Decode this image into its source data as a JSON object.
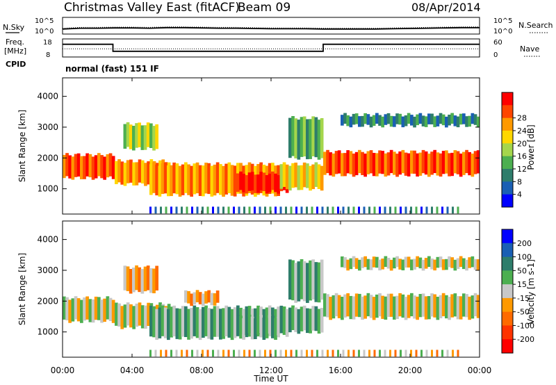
{
  "header": {
    "title": "Christmas Valley East (fitACF)",
    "beam": "Beam 09",
    "date": "08/Apr/2014"
  },
  "mode_label": "normal (fast) 151 IF",
  "noise_panel": {
    "left_label": "N.Sky",
    "right_label": "N.Search",
    "left_ticks": [
      "10^5",
      "10^0"
    ],
    "right_ticks": [
      "10^5",
      "10^0"
    ],
    "level": [
      1.3,
      1.6,
      1.6,
      1.7,
      1.7,
      1.6,
      1.8,
      1.8,
      1.7,
      1.6,
      1.6,
      1.5,
      1.4,
      1.4,
      1.4,
      1.3,
      1.3,
      1.3,
      1.3,
      1.4,
      1.5,
      1.6,
      1.7,
      1.8,
      1.8
    ]
  },
  "freq_panel": {
    "left_label": "Freq.",
    "left_unit": "[MHz]",
    "right_label": "Nave",
    "cpid_label": "CPID",
    "left_ticks": [
      "18",
      "8"
    ],
    "right_ticks": [
      "60",
      "0"
    ],
    "steps": [
      [
        0,
        2.9,
        15.2
      ],
      [
        2.9,
        15.0,
        11.0
      ],
      [
        15.0,
        24,
        15.2
      ]
    ],
    "nave_level": 0.45
  },
  "time_axis": {
    "label": "Time UT",
    "ticks": [
      "00:00",
      "04:00",
      "08:00",
      "12:00",
      "16:00",
      "20:00",
      "00:00"
    ],
    "range_hours": [
      0,
      24
    ]
  },
  "chart_data": [
    {
      "type": "heatmap",
      "name": "power",
      "ylabel": "Slant Range [km]",
      "xrange_hours": [
        0,
        24
      ],
      "ylim_km": [
        180,
        4600
      ],
      "yticks": [
        1000,
        2000,
        3000,
        4000
      ],
      "colorbar": {
        "label": "Power [dB]",
        "ticks": [
          "4",
          "8",
          "12",
          "16",
          "20",
          "24",
          "28"
        ],
        "colors": [
          "#0000ff",
          "#1a5fb4",
          "#2e7d6b",
          "#4caf50",
          "#a5d64c",
          "#ffd700",
          "#ff9900",
          "#ff4500",
          "#ff0000"
        ]
      },
      "echo_bands": [
        {
          "t": [
            0.0,
            3.0
          ],
          "r": [
            1350,
            2100
          ],
          "level": 7
        },
        {
          "t": [
            3.0,
            6.2
          ],
          "r": [
            1150,
            1900
          ],
          "level": 6
        },
        {
          "t": [
            3.5,
            5.5
          ],
          "r": [
            2300,
            3100
          ],
          "level": 4
        },
        {
          "t": [
            5.0,
            12.5
          ],
          "r": [
            800,
            1800
          ],
          "level": 6
        },
        {
          "t": [
            10.0,
            13.0
          ],
          "r": [
            900,
            1500
          ],
          "level": 8
        },
        {
          "t": [
            12.5,
            15.0
          ],
          "r": [
            1000,
            1800
          ],
          "level": 5
        },
        {
          "t": [
            13.0,
            15.0
          ],
          "r": [
            2000,
            3300
          ],
          "level": 3
        },
        {
          "t": [
            15.0,
            24.0
          ],
          "r": [
            1450,
            2200
          ],
          "level": 7
        },
        {
          "t": [
            16.0,
            24.0
          ],
          "r": [
            3050,
            3400
          ],
          "level": 2
        }
      ]
    },
    {
      "type": "heatmap",
      "name": "velocity",
      "ylabel": "Slant Range [km]",
      "xrange_hours": [
        0,
        24
      ],
      "ylim_km": [
        180,
        4600
      ],
      "yticks": [
        1000,
        2000,
        3000,
        4000
      ],
      "colorbar": {
        "label": "Velocity [m s-1]",
        "ticks": [
          "200",
          "100",
          "50",
          "15",
          "-15",
          "-50",
          "-100",
          "-200"
        ],
        "colors": [
          "#0000ff",
          "#1a5fb4",
          "#2e7d6b",
          "#4caf50",
          "#c8c8c8",
          "#ff9900",
          "#ff6a00",
          "#ff3300",
          "#ff0000"
        ]
      },
      "echo_bands": [
        {
          "t": [
            0.0,
            3.0
          ],
          "r": [
            1350,
            2100
          ],
          "level": 4
        },
        {
          "t": [
            3.0,
            6.2
          ],
          "r": [
            1150,
            1900
          ],
          "level": 4
        },
        {
          "t": [
            3.5,
            5.5
          ],
          "r": [
            2300,
            3100
          ],
          "level": 5
        },
        {
          "t": [
            5.0,
            12.5
          ],
          "r": [
            800,
            1800
          ],
          "level": 3
        },
        {
          "t": [
            10.0,
            13.0
          ],
          "r": [
            900,
            1500
          ],
          "level": 3
        },
        {
          "t": [
            12.5,
            15.0
          ],
          "r": [
            1000,
            1800
          ],
          "level": 3
        },
        {
          "t": [
            13.0,
            15.0
          ],
          "r": [
            2000,
            3300
          ],
          "level": 3
        },
        {
          "t": [
            15.0,
            24.0
          ],
          "r": [
            1450,
            2200
          ],
          "level": 4
        },
        {
          "t": [
            16.0,
            24.0
          ],
          "r": [
            3050,
            3400
          ],
          "level": 4
        },
        {
          "t": [
            7.0,
            9.0
          ],
          "r": [
            1900,
            2300
          ],
          "level": 5
        }
      ]
    }
  ]
}
